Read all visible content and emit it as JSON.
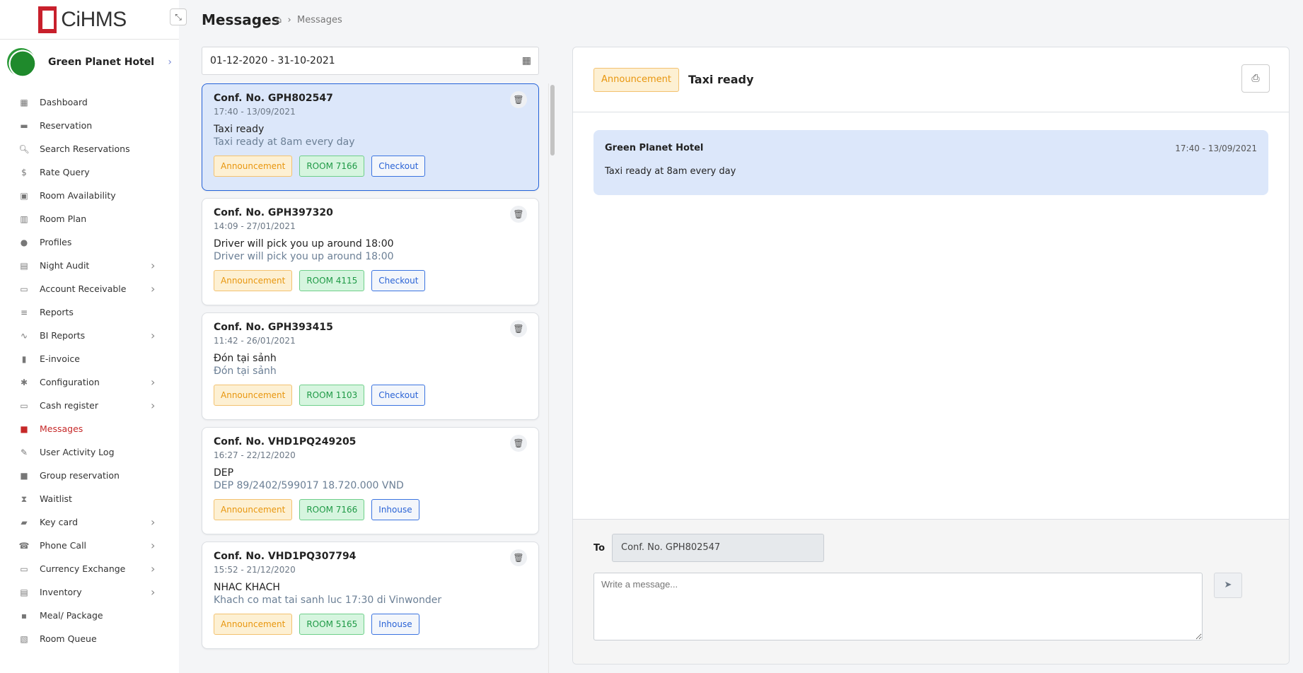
{
  "brand": {
    "name": "CiHMS",
    "accent": "#c8202c"
  },
  "hotel": {
    "name": "Green Planet Hotel"
  },
  "sidebar": {
    "items": [
      {
        "label": "Dashboard",
        "icon": "dashboard-icon",
        "sub": false
      },
      {
        "label": "Reservation",
        "icon": "bed-icon",
        "sub": false
      },
      {
        "label": "Search Reservations",
        "icon": "search-doc-icon",
        "sub": false
      },
      {
        "label": "Rate Query",
        "icon": "dollar-icon",
        "sub": false
      },
      {
        "label": "Room Availability",
        "icon": "calendar-icon",
        "sub": false
      },
      {
        "label": "Room Plan",
        "icon": "building-icon",
        "sub": false
      },
      {
        "label": "Profiles",
        "icon": "person-icon",
        "sub": false
      },
      {
        "label": "Night Audit",
        "icon": "clipboard-icon",
        "sub": true
      },
      {
        "label": "Account Receivable",
        "icon": "money-icon",
        "sub": true
      },
      {
        "label": "Reports",
        "icon": "report-icon",
        "sub": false
      },
      {
        "label": "BI Reports",
        "icon": "chart-icon",
        "sub": true
      },
      {
        "label": "E-invoice",
        "icon": "invoice-icon",
        "sub": false
      },
      {
        "label": "Configuration",
        "icon": "gear-icon",
        "sub": true
      },
      {
        "label": "Cash register",
        "icon": "card-icon",
        "sub": true
      },
      {
        "label": "Messages",
        "icon": "message-icon",
        "sub": false,
        "active": true
      },
      {
        "label": "User Activity Log",
        "icon": "user-edit-icon",
        "sub": false
      },
      {
        "label": "Group reservation",
        "icon": "briefcase-icon",
        "sub": false
      },
      {
        "label": "Waitlist",
        "icon": "hourglass-icon",
        "sub": false
      },
      {
        "label": "Key card",
        "icon": "keycard-icon",
        "sub": true
      },
      {
        "label": "Phone Call",
        "icon": "phone-icon",
        "sub": true
      },
      {
        "label": "Currency Exchange",
        "icon": "exchange-icon",
        "sub": true
      },
      {
        "label": "Inventory",
        "icon": "warehouse-icon",
        "sub": true
      },
      {
        "label": "Meal/ Package",
        "icon": "meal-icon",
        "sub": false
      },
      {
        "label": "Room Queue",
        "icon": "queue-icon",
        "sub": false
      }
    ]
  },
  "header": {
    "title": "Messages",
    "breadcrumb": "Messages"
  },
  "filter": {
    "date_range": "01-12-2020 - 31-10-2021"
  },
  "messages": [
    {
      "conf": "Conf. No. GPH802547",
      "time": "17:40 - 13/09/2021",
      "subject": "Taxi ready",
      "body": "Taxi ready at 8am every day",
      "type": "Announcement",
      "room": "ROOM 7166",
      "status": "Checkout",
      "selected": true
    },
    {
      "conf": "Conf. No. GPH397320",
      "time": "14:09 - 27/01/2021",
      "subject": "Driver will pick you up around 18:00",
      "body": "Driver will pick you up around 18:00",
      "type": "Announcement",
      "room": "ROOM 4115",
      "status": "Checkout"
    },
    {
      "conf": "Conf. No. GPH393415",
      "time": "11:42 - 26/01/2021",
      "subject": "Đón tại sảnh",
      "body": "Đón tại sảnh",
      "type": "Announcement",
      "room": "ROOM 1103",
      "status": "Checkout"
    },
    {
      "conf": "Conf. No. VHD1PQ249205",
      "time": "16:27 - 22/12/2020",
      "subject": "DEP",
      "body": "DEP 89/2402/599017 18.720.000 VND",
      "type": "Announcement",
      "room": "ROOM 7166",
      "status": "Inhouse"
    },
    {
      "conf": "Conf. No. VHD1PQ307794",
      "time": "15:52 - 21/12/2020",
      "subject": "NHAC KHACH",
      "body": "Khach co mat tai sanh luc 17:30 di Vinwonder",
      "type": "Announcement",
      "room": "ROOM 5165",
      "status": "Inhouse"
    }
  ],
  "detail": {
    "type": "Announcement",
    "title": "Taxi ready",
    "from": "Green Planet Hotel",
    "time": "17:40 - 13/09/2021",
    "text": "Taxi ready at 8am every day"
  },
  "compose": {
    "to_label": "To",
    "to_value": "Conf. No. GPH802547",
    "placeholder": "Write a message..."
  }
}
